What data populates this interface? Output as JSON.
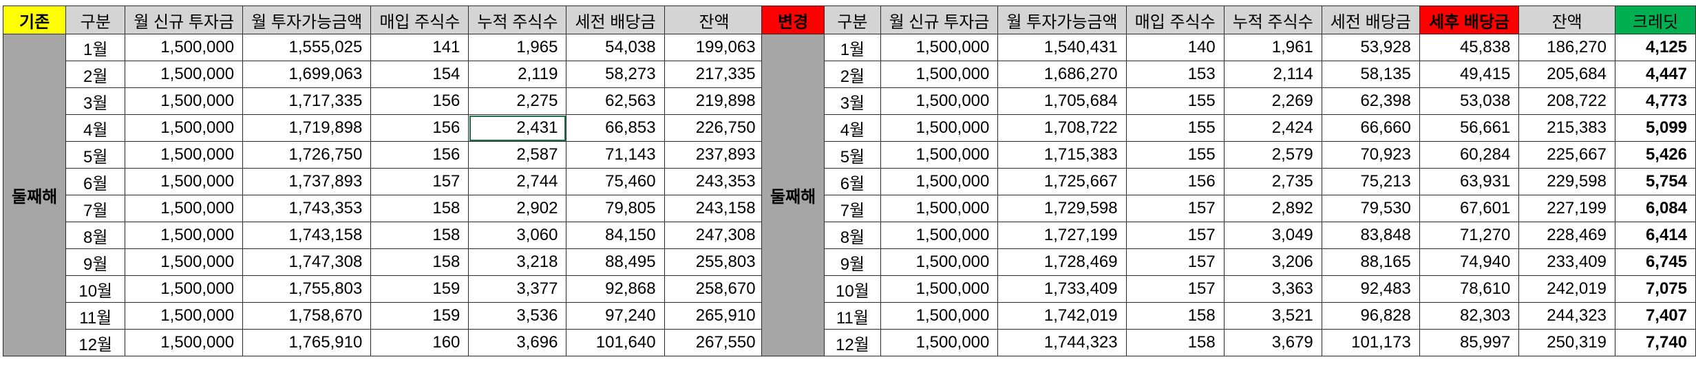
{
  "left_table": {
    "tag": "기존",
    "headers": [
      "구분",
      "월 신규 투자금",
      "월 투자가능금액",
      "매입 주식수",
      "누적 주식수",
      "세전 배당금",
      "잔액"
    ],
    "side_label": "둘째해",
    "rows": [
      [
        "1월",
        "1,500,000",
        "1,555,025",
        "141",
        "1,965",
        "54,038",
        "199,063"
      ],
      [
        "2월",
        "1,500,000",
        "1,699,063",
        "154",
        "2,119",
        "58,273",
        "217,335"
      ],
      [
        "3월",
        "1,500,000",
        "1,717,335",
        "156",
        "2,275",
        "62,563",
        "219,898"
      ],
      [
        "4월",
        "1,500,000",
        "1,719,898",
        "156",
        "2,431",
        "66,853",
        "226,750"
      ],
      [
        "5월",
        "1,500,000",
        "1,726,750",
        "156",
        "2,587",
        "71,143",
        "237,893"
      ],
      [
        "6월",
        "1,500,000",
        "1,737,893",
        "157",
        "2,744",
        "75,460",
        "243,353"
      ],
      [
        "7월",
        "1,500,000",
        "1,743,353",
        "158",
        "2,902",
        "79,805",
        "243,158"
      ],
      [
        "8월",
        "1,500,000",
        "1,743,158",
        "158",
        "3,060",
        "84,150",
        "247,308"
      ],
      [
        "9월",
        "1,500,000",
        "1,747,308",
        "158",
        "3,218",
        "88,495",
        "255,803"
      ],
      [
        "10월",
        "1,500,000",
        "1,755,803",
        "159",
        "3,377",
        "92,868",
        "258,670"
      ],
      [
        "11월",
        "1,500,000",
        "1,758,670",
        "159",
        "3,536",
        "97,240",
        "265,910"
      ],
      [
        "12월",
        "1,500,000",
        "1,765,910",
        "160",
        "3,696",
        "101,640",
        "267,550"
      ]
    ]
  },
  "right_table": {
    "tag": "변경",
    "headers": [
      "구분",
      "월 신규 투자금",
      "월 투자가능금액",
      "매입 주식수",
      "누적 주식수",
      "세전 배당금",
      "세후 배당금",
      "잔액",
      "크레딧"
    ],
    "side_label": "둘째해",
    "rows": [
      [
        "1월",
        "1,500,000",
        "1,540,431",
        "140",
        "1,961",
        "53,928",
        "45,838",
        "186,270",
        "4,125"
      ],
      [
        "2월",
        "1,500,000",
        "1,686,270",
        "153",
        "2,114",
        "58,135",
        "49,415",
        "205,684",
        "4,447"
      ],
      [
        "3월",
        "1,500,000",
        "1,705,684",
        "155",
        "2,269",
        "62,398",
        "53,038",
        "208,722",
        "4,773"
      ],
      [
        "4월",
        "1,500,000",
        "1,708,722",
        "155",
        "2,424",
        "66,660",
        "56,661",
        "215,383",
        "5,099"
      ],
      [
        "5월",
        "1,500,000",
        "1,715,383",
        "155",
        "2,579",
        "70,923",
        "60,284",
        "225,667",
        "5,426"
      ],
      [
        "6월",
        "1,500,000",
        "1,725,667",
        "156",
        "2,735",
        "75,213",
        "63,931",
        "229,598",
        "5,754"
      ],
      [
        "7월",
        "1,500,000",
        "1,729,598",
        "157",
        "2,892",
        "79,530",
        "67,601",
        "227,199",
        "6,084"
      ],
      [
        "8월",
        "1,500,000",
        "1,727,199",
        "157",
        "3,049",
        "83,848",
        "71,270",
        "228,469",
        "6,414"
      ],
      [
        "9월",
        "1,500,000",
        "1,728,469",
        "157",
        "3,206",
        "88,165",
        "74,940",
        "233,409",
        "6,745"
      ],
      [
        "10월",
        "1,500,000",
        "1,733,409",
        "157",
        "3,363",
        "92,483",
        "78,610",
        "242,019",
        "7,075"
      ],
      [
        "11월",
        "1,500,000",
        "1,742,019",
        "158",
        "3,521",
        "96,828",
        "82,303",
        "244,323",
        "7,407"
      ],
      [
        "12월",
        "1,500,000",
        "1,744,323",
        "158",
        "3,679",
        "101,173",
        "85,997",
        "250,319",
        "7,740"
      ]
    ]
  },
  "colors": {
    "header_bg": "#d4d4d4",
    "side_bg": "#a6a6a6",
    "tag_existing": "#ffff00",
    "tag_changed": "#ff0000",
    "after_tax_header": "#ff0000",
    "credit_header": "#00b050",
    "credit_text": "#00a040"
  }
}
